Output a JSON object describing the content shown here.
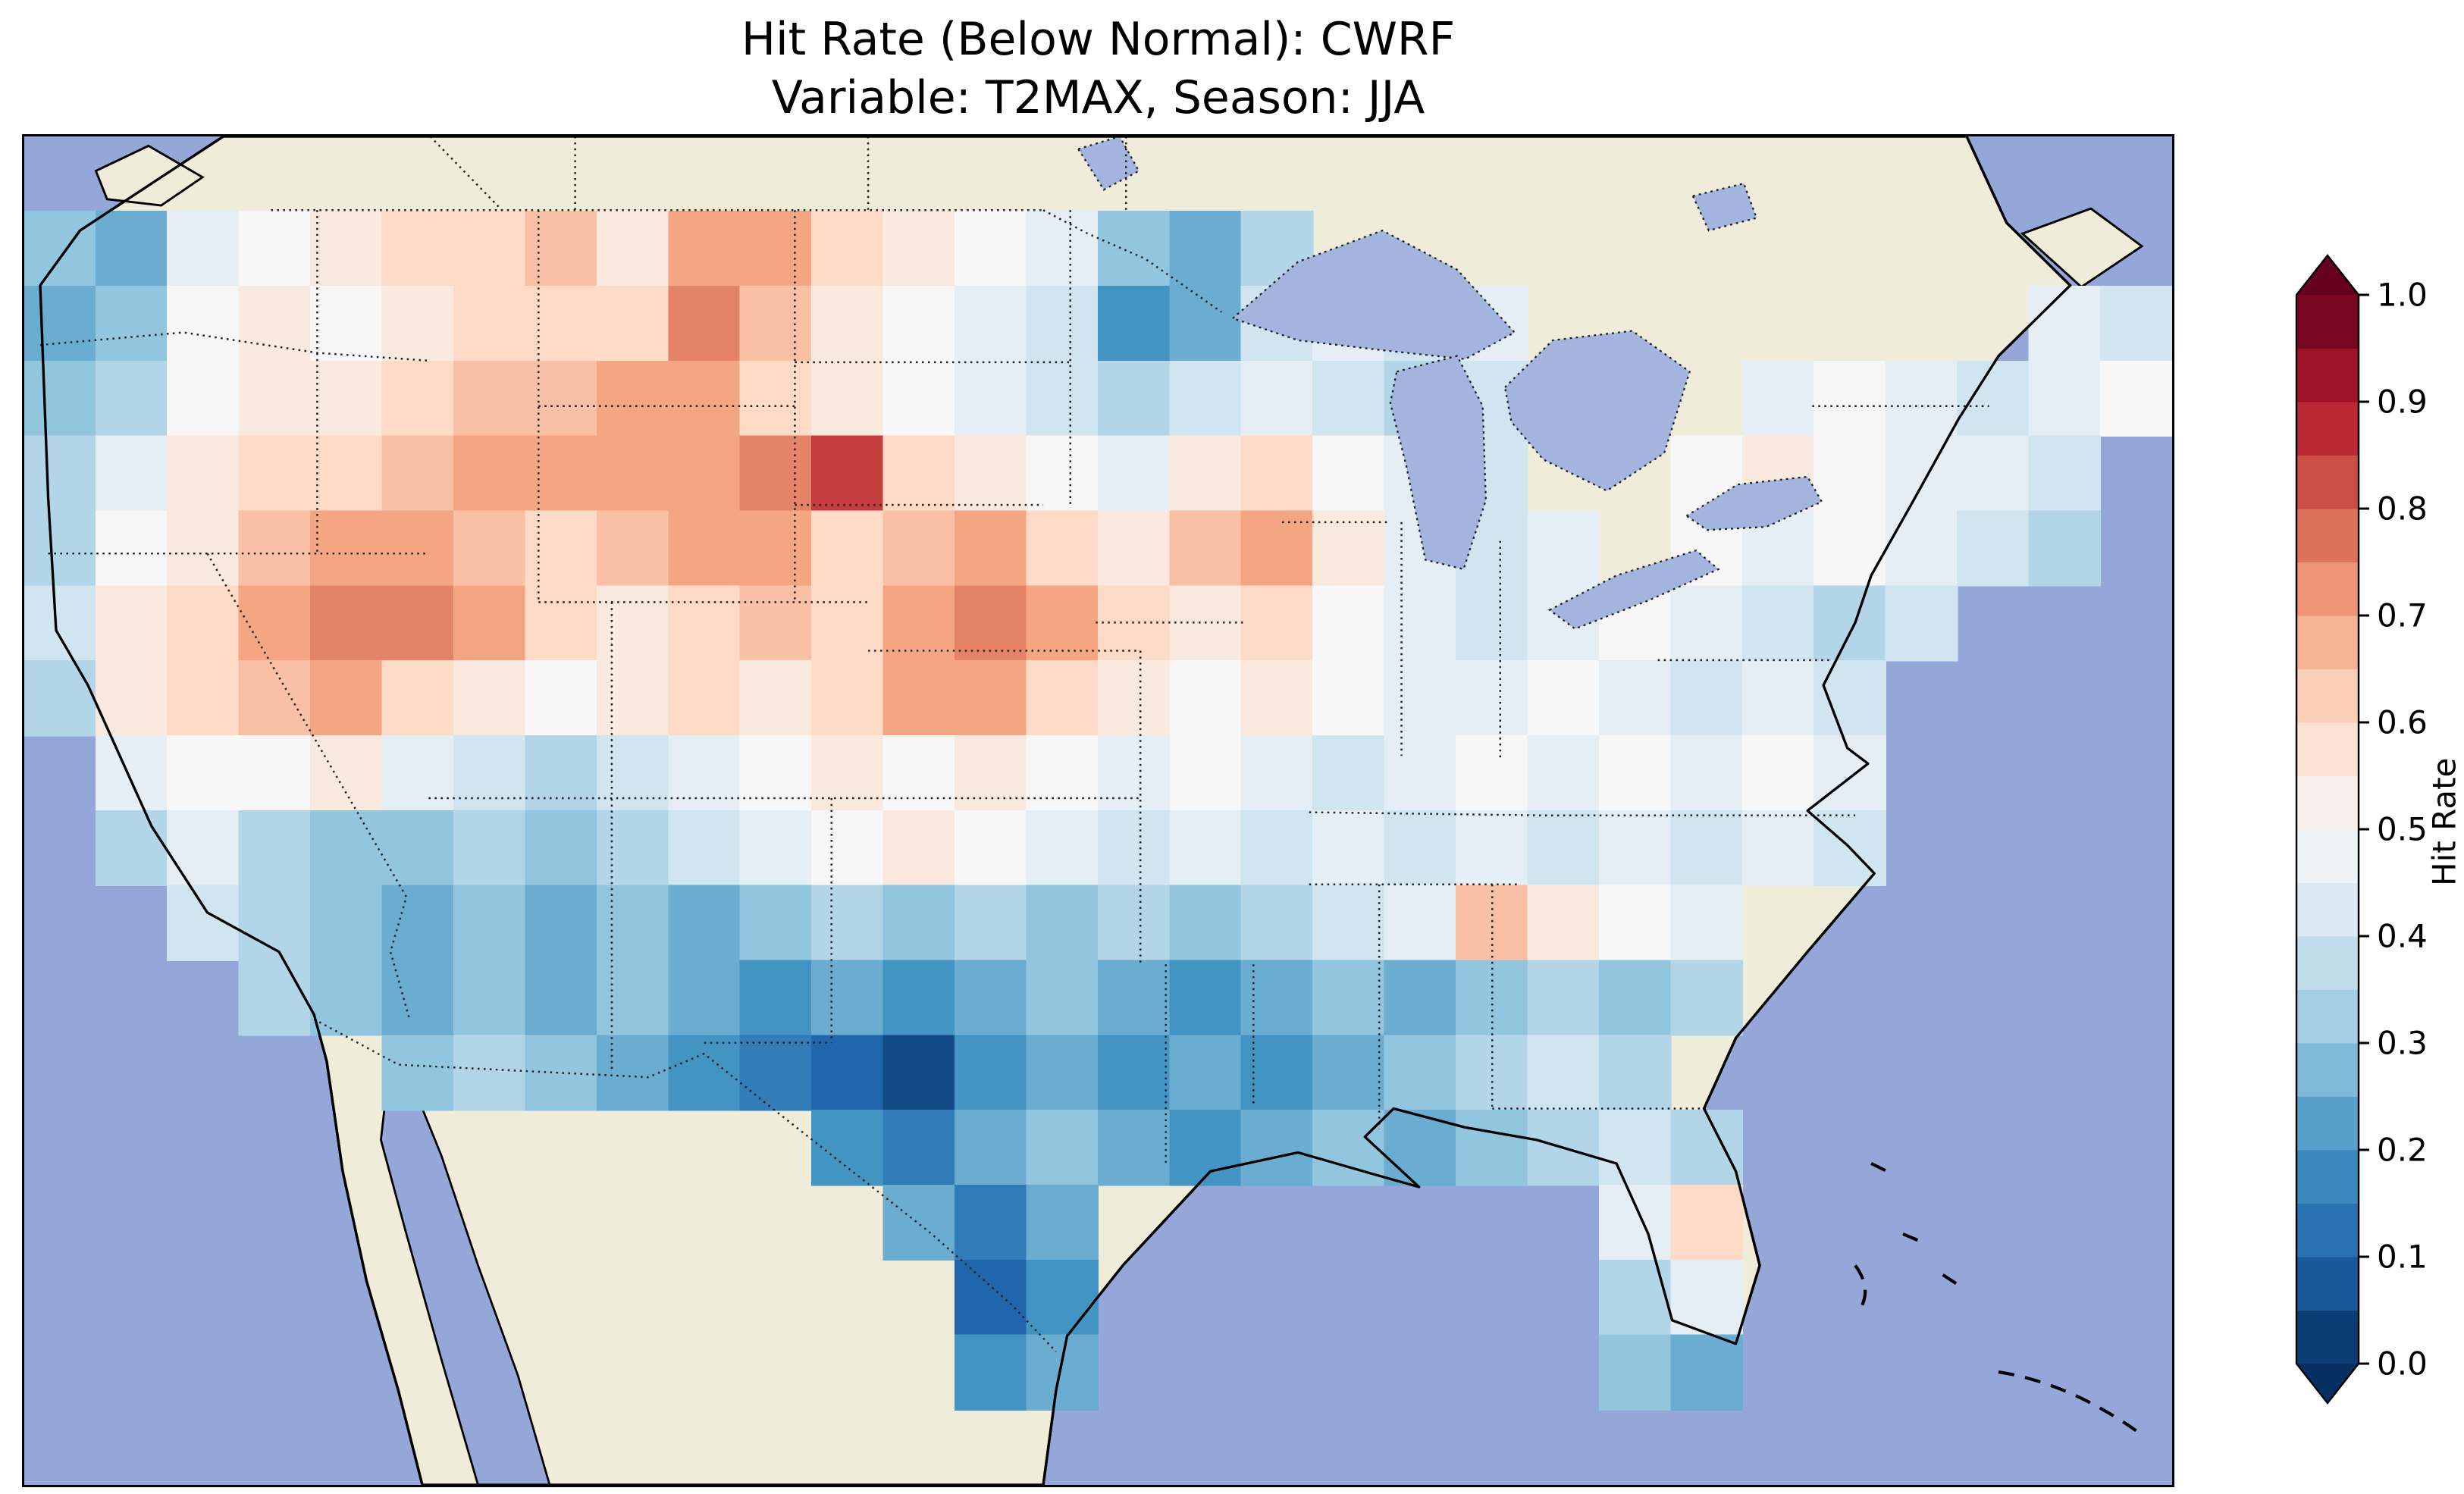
{
  "title": {
    "line1": "Hit Rate (Below Normal): CWRF",
    "line2": "Variable: T2MAX, Season: JJA"
  },
  "colorbar": {
    "label": "Hit Rate",
    "ticks": [
      "0.0",
      "0.1",
      "0.2",
      "0.3",
      "0.4",
      "0.5",
      "0.6",
      "0.7",
      "0.8",
      "0.9",
      "1.0"
    ],
    "vmin": 0.0,
    "vmax": 1.0,
    "colormap_anchors": [
      "#053061",
      "#2166ac",
      "#4393c3",
      "#92c5de",
      "#d1e5f0",
      "#f7f7f7",
      "#fddbc7",
      "#f4a582",
      "#d6604d",
      "#b2182b",
      "#67001f"
    ],
    "extend_over_color": "#67001f",
    "extend_under_color": "#053061"
  },
  "map_colors": {
    "ocean": "#95a7d8",
    "land": "#efecd9",
    "lake": "#a3b4de",
    "coastline": "#000000",
    "border_dots": "#222222"
  },
  "chart_data": {
    "type": "heatmap",
    "title": "Hit Rate (Below Normal): CWRF",
    "subtitle": "Variable: T2MAX, Season: JJA",
    "metric": "Hit Rate (Below Normal)",
    "model": "CWRF",
    "variable": "T2MAX",
    "season": "JJA",
    "colorbar_label": "Hit Rate",
    "colormap": "RdBu_r",
    "value_range": [
      0.0,
      1.0
    ],
    "legend_position": "right",
    "grid": {
      "ncols": 30,
      "nrows": 18,
      "values": [
        [
          null,
          null,
          null,
          null,
          null,
          null,
          null,
          null,
          null,
          null,
          null,
          null,
          null,
          null,
          null,
          null,
          null,
          null,
          null,
          null,
          null,
          null,
          null,
          null,
          null,
          null,
          null,
          null,
          null,
          null
        ],
        [
          0.3,
          0.25,
          0.45,
          0.5,
          0.55,
          0.6,
          0.6,
          0.65,
          0.55,
          0.7,
          0.7,
          0.6,
          0.55,
          0.5,
          0.45,
          0.3,
          0.25,
          0.35,
          null,
          null,
          null,
          null,
          null,
          null,
          null,
          null,
          null,
          null,
          null,
          null
        ],
        [
          0.25,
          0.3,
          0.5,
          0.55,
          0.5,
          0.55,
          0.6,
          0.6,
          0.6,
          0.75,
          0.65,
          0.55,
          0.5,
          0.45,
          0.4,
          0.2,
          0.25,
          0.4,
          0.45,
          0.4,
          0.45,
          null,
          null,
          null,
          null,
          null,
          null,
          null,
          0.45,
          0.4
        ],
        [
          0.3,
          0.35,
          0.5,
          0.55,
          0.55,
          0.6,
          0.65,
          0.65,
          0.7,
          0.7,
          0.6,
          0.55,
          0.5,
          0.45,
          0.4,
          0.35,
          0.4,
          0.45,
          0.4,
          0.35,
          0.4,
          null,
          null,
          null,
          0.45,
          0.5,
          0.45,
          0.4,
          0.45,
          0.5
        ],
        [
          0.35,
          0.45,
          0.55,
          0.6,
          0.6,
          0.65,
          0.7,
          0.7,
          0.7,
          0.7,
          0.75,
          0.85,
          0.6,
          0.55,
          0.5,
          0.45,
          0.55,
          0.6,
          0.5,
          0.45,
          0.4,
          null,
          null,
          0.5,
          0.55,
          0.5,
          0.45,
          0.45,
          0.4,
          null
        ],
        [
          0.35,
          0.5,
          0.55,
          0.65,
          0.7,
          0.7,
          0.65,
          0.6,
          0.65,
          0.7,
          0.7,
          0.6,
          0.65,
          0.7,
          0.6,
          0.55,
          0.65,
          0.7,
          0.55,
          0.45,
          0.4,
          0.45,
          null,
          0.5,
          0.45,
          0.5,
          0.45,
          0.4,
          0.35,
          null
        ],
        [
          0.4,
          0.55,
          0.6,
          0.7,
          0.75,
          0.75,
          0.7,
          0.6,
          0.55,
          0.6,
          0.65,
          0.6,
          0.7,
          0.75,
          0.7,
          0.6,
          0.55,
          0.6,
          0.5,
          0.45,
          0.4,
          0.45,
          0.5,
          0.45,
          0.4,
          0.35,
          0.4,
          null,
          null,
          null
        ],
        [
          0.35,
          0.55,
          0.6,
          0.65,
          0.7,
          0.6,
          0.55,
          0.5,
          0.55,
          0.6,
          0.55,
          0.6,
          0.7,
          0.7,
          0.6,
          0.55,
          0.5,
          0.55,
          0.5,
          0.45,
          0.45,
          0.5,
          0.45,
          0.4,
          0.45,
          0.4,
          null,
          null,
          null,
          null
        ],
        [
          null,
          0.45,
          0.5,
          0.5,
          0.55,
          0.45,
          0.4,
          0.35,
          0.4,
          0.45,
          0.5,
          0.55,
          0.5,
          0.55,
          0.5,
          0.45,
          0.5,
          0.45,
          0.4,
          0.45,
          0.5,
          0.45,
          0.5,
          0.45,
          0.5,
          0.45,
          null,
          null,
          null,
          null
        ],
        [
          null,
          0.35,
          0.45,
          0.35,
          0.3,
          0.3,
          0.35,
          0.3,
          0.35,
          0.4,
          0.45,
          0.5,
          0.55,
          0.5,
          0.45,
          0.4,
          0.45,
          0.4,
          0.45,
          0.4,
          0.45,
          0.4,
          0.45,
          0.4,
          0.45,
          0.4,
          null,
          null,
          null,
          null
        ],
        [
          null,
          null,
          0.4,
          0.35,
          0.3,
          0.25,
          0.3,
          0.25,
          0.3,
          0.25,
          0.3,
          0.35,
          0.3,
          0.35,
          0.3,
          0.35,
          0.3,
          0.35,
          0.4,
          0.45,
          0.65,
          0.55,
          0.5,
          0.45,
          null,
          null,
          null,
          null,
          null,
          null
        ],
        [
          null,
          null,
          null,
          0.35,
          0.3,
          0.25,
          0.3,
          0.25,
          0.3,
          0.25,
          0.2,
          0.25,
          0.2,
          0.25,
          0.3,
          0.25,
          0.2,
          0.25,
          0.3,
          0.25,
          0.3,
          0.35,
          0.3,
          0.35,
          null,
          null,
          null,
          null,
          null,
          null
        ],
        [
          null,
          null,
          null,
          null,
          null,
          0.3,
          0.35,
          0.3,
          0.25,
          0.2,
          0.15,
          0.1,
          0.05,
          0.2,
          0.25,
          0.2,
          0.25,
          0.2,
          0.25,
          0.3,
          0.35,
          0.4,
          0.35,
          null,
          null,
          null,
          null,
          null,
          null,
          null
        ],
        [
          null,
          null,
          null,
          null,
          null,
          null,
          null,
          null,
          null,
          null,
          null,
          0.2,
          0.15,
          0.25,
          0.3,
          0.25,
          0.2,
          0.25,
          0.3,
          0.25,
          0.3,
          0.35,
          0.4,
          0.35,
          null,
          null,
          null,
          null,
          null,
          null
        ],
        [
          null,
          null,
          null,
          null,
          null,
          null,
          null,
          null,
          null,
          null,
          null,
          null,
          0.25,
          0.15,
          0.25,
          null,
          null,
          null,
          null,
          null,
          null,
          null,
          0.45,
          0.6,
          null,
          null,
          null,
          null,
          null,
          null
        ],
        [
          null,
          null,
          null,
          null,
          null,
          null,
          null,
          null,
          null,
          null,
          null,
          null,
          null,
          0.1,
          0.2,
          null,
          null,
          null,
          null,
          null,
          null,
          null,
          0.35,
          0.45,
          null,
          null,
          null,
          null,
          null,
          null
        ],
        [
          null,
          null,
          null,
          null,
          null,
          null,
          null,
          null,
          null,
          null,
          null,
          null,
          null,
          0.2,
          0.25,
          null,
          null,
          null,
          null,
          null,
          null,
          null,
          0.3,
          0.25,
          null,
          null,
          null,
          null,
          null,
          null
        ],
        [
          null,
          null,
          null,
          null,
          null,
          null,
          null,
          null,
          null,
          null,
          null,
          null,
          null,
          null,
          null,
          null,
          null,
          null,
          null,
          null,
          null,
          null,
          null,
          null,
          null,
          null,
          null,
          null,
          null,
          null
        ]
      ]
    }
  }
}
